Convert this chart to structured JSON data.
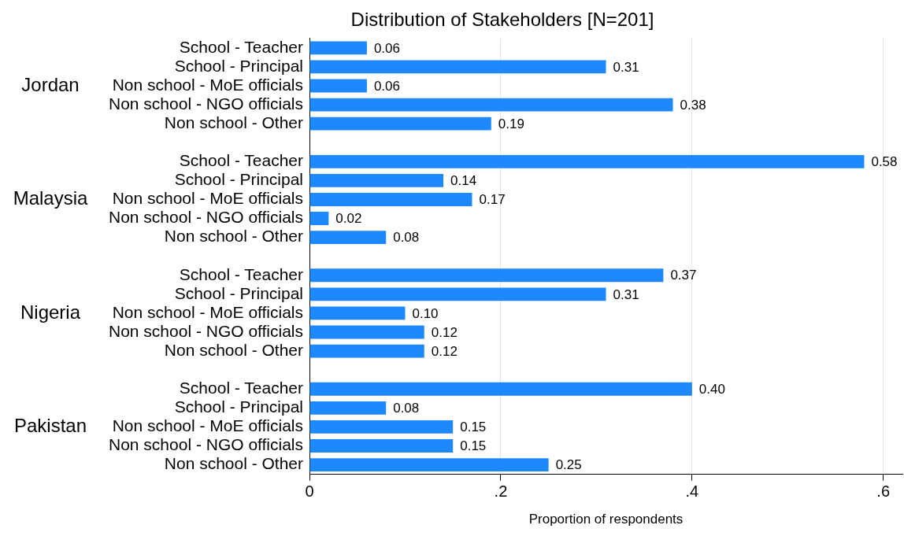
{
  "chart_data": {
    "type": "bar",
    "orientation": "horizontal",
    "title": "Distribution of Stakeholders [N=201]",
    "xlabel": "Proportion of respondents",
    "categories": [
      "School - Teacher",
      "School - Principal",
      "Non school - MoE officials",
      "Non school - NGO officials",
      "Non school - Other",
      null,
      "School - Teacher",
      "School - Principal",
      "Non school - MoE officials",
      "Non school - NGO officials",
      "Non school - Other",
      null,
      "School - Teacher",
      "School - Principal",
      "Non school - MoE officials",
      "Non school - NGO officials",
      "Non school - Other",
      null,
      "School - Teacher",
      "School - Principal",
      "Non school - MoE officials",
      "Non school - NGO officials",
      "Non school - Other"
    ],
    "values": [
      0.06,
      0.31,
      0.06,
      0.38,
      0.19,
      null,
      0.58,
      0.14,
      0.17,
      0.02,
      0.08,
      null,
      0.37,
      0.31,
      0.1,
      0.12,
      0.12,
      null,
      0.4,
      0.08,
      0.15,
      0.15,
      0.25
    ],
    "value_labels": [
      "0.06",
      "0.31",
      "0.06",
      "0.38",
      "0.19",
      null,
      "0.58",
      "0.14",
      "0.17",
      "0.02",
      "0.08",
      null,
      "0.37",
      "0.31",
      "0.10",
      "0.12",
      "0.12",
      null,
      "0.40",
      "0.08",
      "0.15",
      "0.15",
      "0.25"
    ],
    "color": "#1e88ff",
    "xlim": [
      0,
      0.62
    ],
    "xticks": [
      0,
      {
        "value": 0.2,
        "label": ".2"
      },
      {
        "value": 0.4,
        "label": ".4"
      },
      {
        "value": 0.6,
        "label": ".6"
      }
    ],
    "grid": "x",
    "annotations": [
      "Jordan",
      "Malaysia",
      "Nigeria",
      "Pakistan"
    ]
  }
}
